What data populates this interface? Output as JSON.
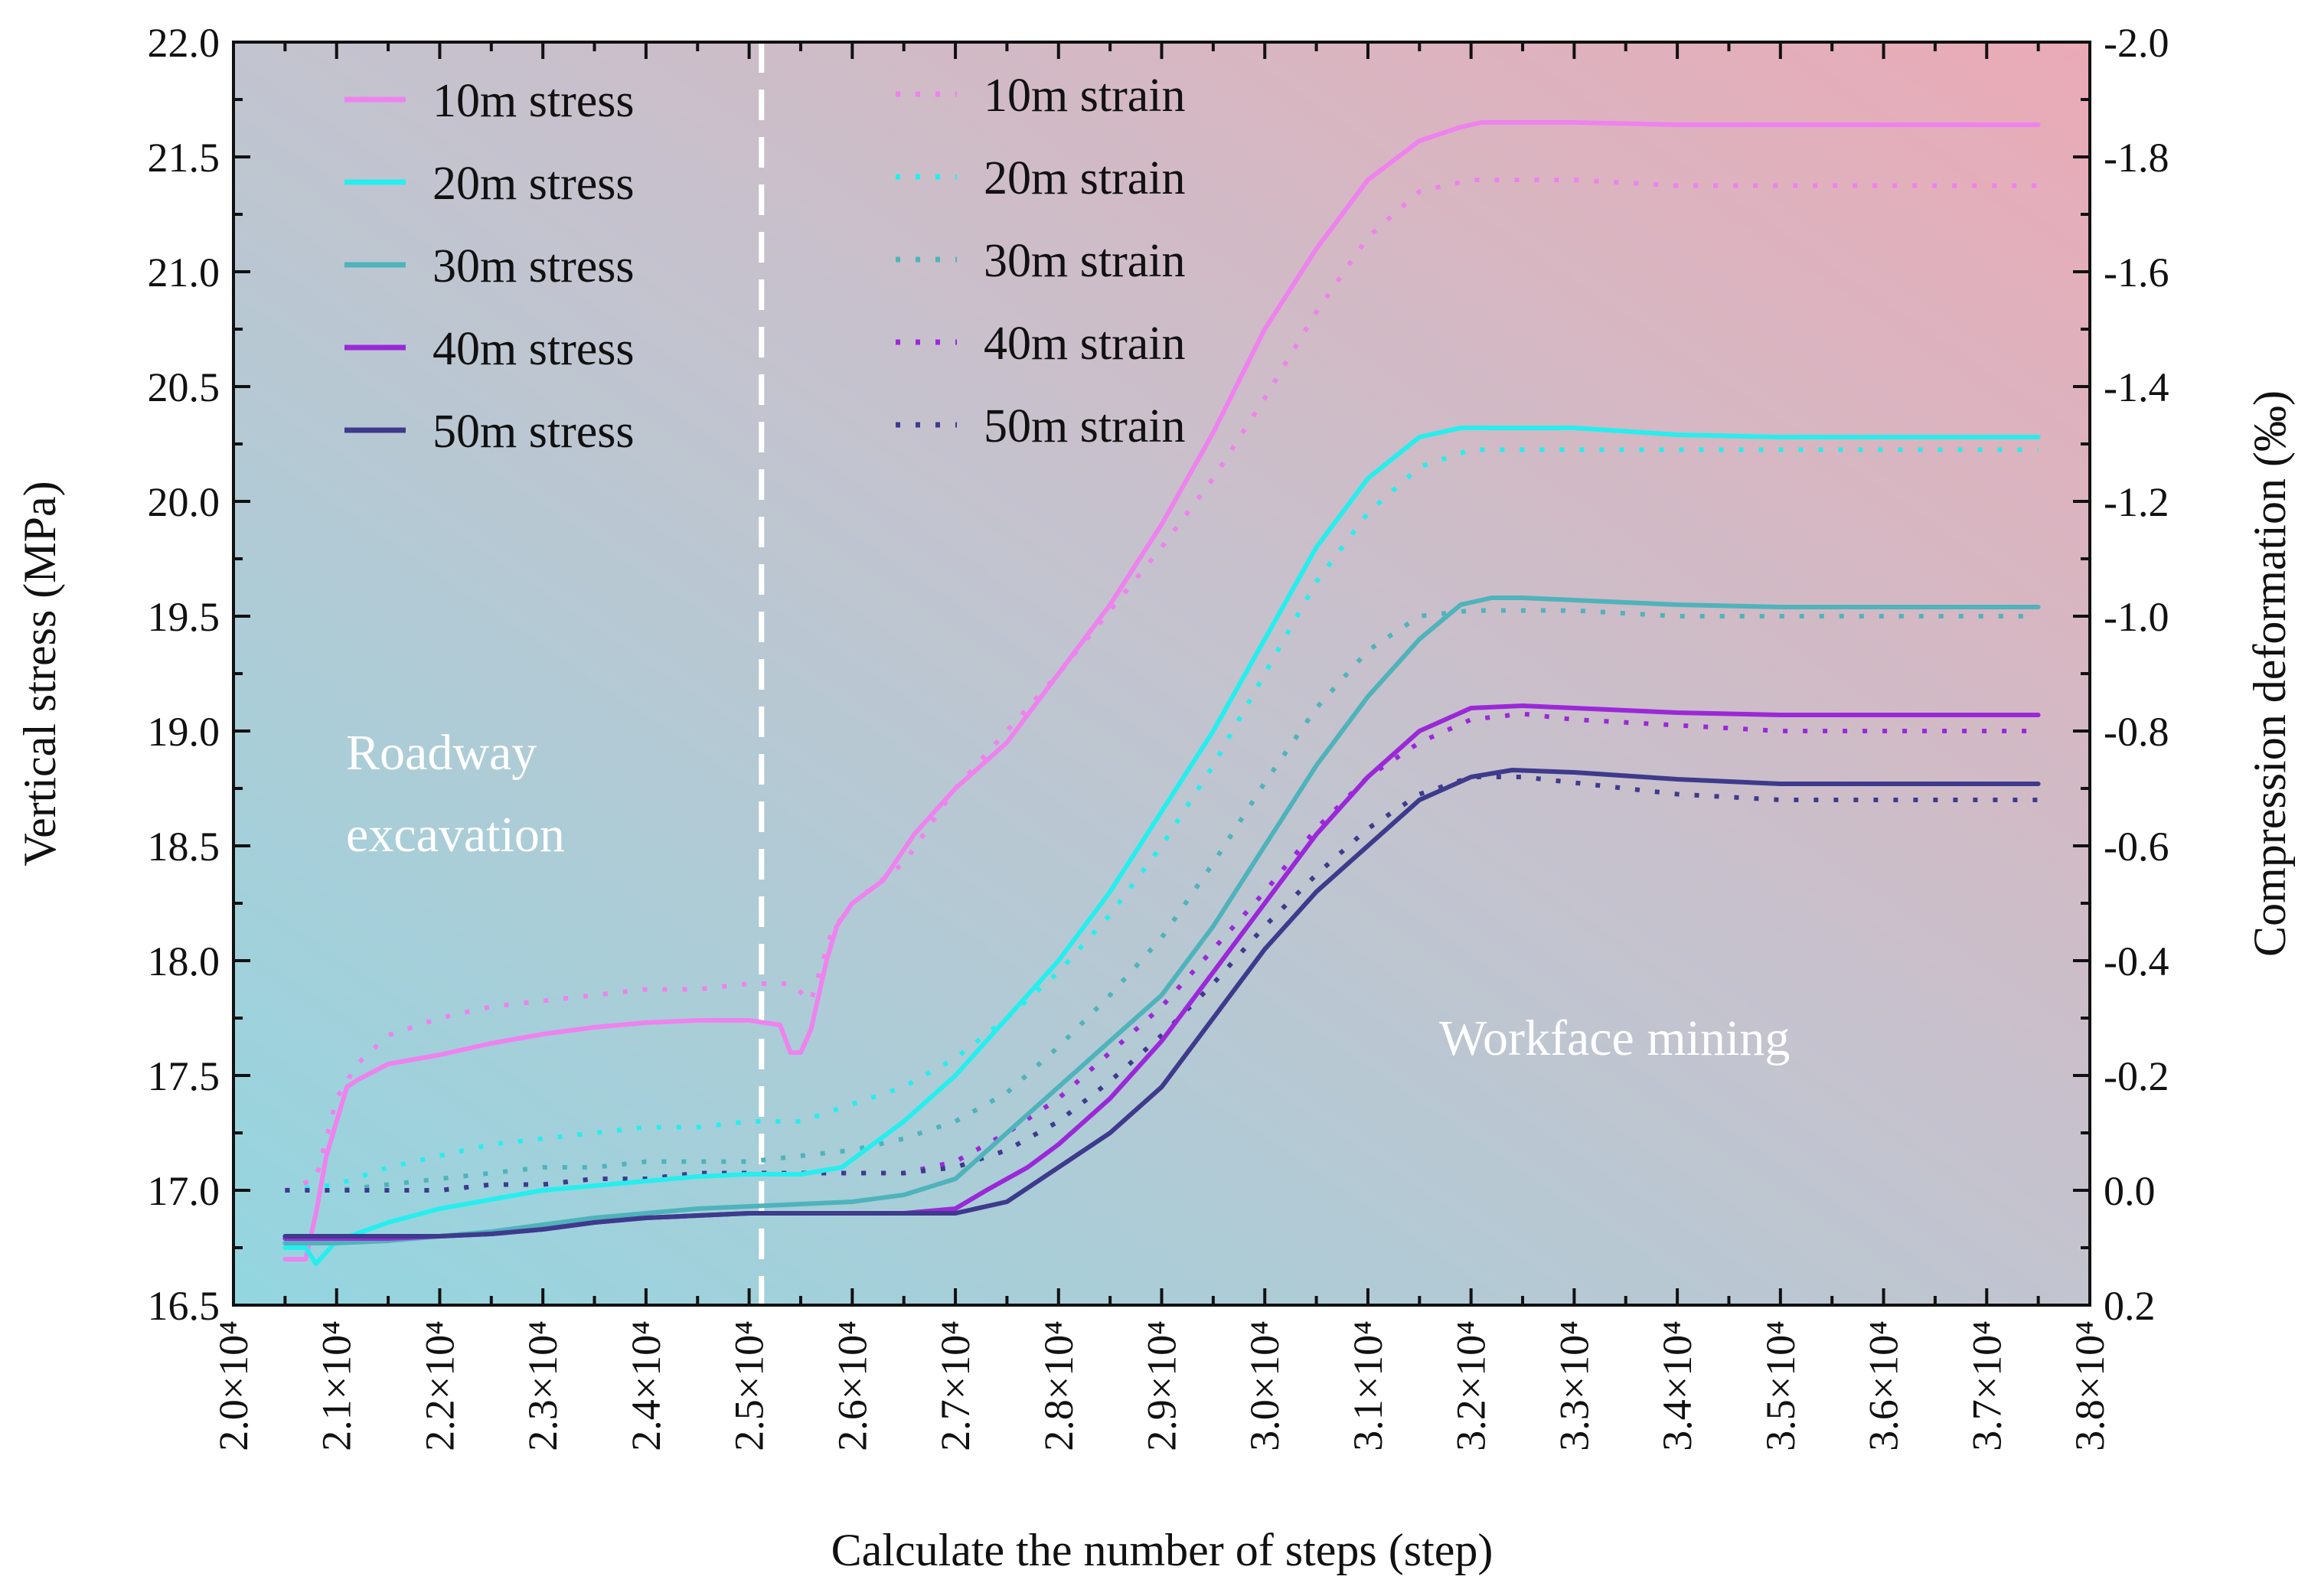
{
  "chart_data": {
    "type": "line",
    "xlabel": "Calculate the number of steps (step)",
    "ylabel_left": "Vertical stress (MPa)",
    "ylabel_right": "Compression deformation (‰)",
    "xlim": [
      20000,
      38000
    ],
    "ylim_left": [
      16.5,
      22.0
    ],
    "ylim_right": [
      0.2,
      -2.0
    ],
    "x_ticks": [
      20000,
      21000,
      22000,
      23000,
      24000,
      25000,
      26000,
      27000,
      28000,
      29000,
      30000,
      31000,
      32000,
      33000,
      34000,
      35000,
      36000,
      37000,
      38000
    ],
    "x_tick_labels": [
      "2.0×10⁴",
      "2.1×10⁴",
      "2.2×10⁴",
      "2.3×10⁴",
      "2.4×10⁴",
      "2.5×10⁴",
      "2.6×10⁴",
      "2.7×10⁴",
      "2.8×10⁴",
      "2.9×10⁴",
      "3.0×10⁴",
      "3.1×10⁴",
      "3.2×10⁴",
      "3.3×10⁴",
      "3.4×10⁴",
      "3.5×10⁴",
      "3.6×10⁴",
      "3.7×10⁴",
      "3.8×10⁴"
    ],
    "y_left_ticks": [
      16.5,
      17.0,
      17.5,
      18.0,
      18.5,
      19.0,
      19.5,
      20.0,
      20.5,
      21.0,
      21.5,
      22.0
    ],
    "y_left_tick_labels": [
      "16.5",
      "17.0",
      "17.5",
      "18.0",
      "18.5",
      "19.0",
      "19.5",
      "20.0",
      "20.5",
      "21.0",
      "21.5",
      "22.0"
    ],
    "y_right_ticks": [
      0.2,
      0.0,
      -0.2,
      -0.4,
      -0.6,
      -0.8,
      -1.0,
      -1.2,
      -1.4,
      -1.6,
      -1.8,
      -2.0
    ],
    "y_right_tick_labels": [
      "0.2",
      "0.0",
      "-0.2",
      "-0.4",
      "-0.6",
      "-0.8",
      "-1.0",
      "-1.2",
      "-1.4",
      "-1.6",
      "-1.8",
      "-2.0"
    ],
    "divider_x": 25120,
    "annotations": [
      "Roadway",
      "excavation",
      "Workface mining"
    ],
    "stress_series": [
      {
        "name": "10m stress",
        "color": "#ee82ee",
        "axis": "left",
        "x": [
          20500,
          20700,
          20800,
          20900,
          21000,
          21100,
          21200,
          21500,
          22000,
          22500,
          23000,
          23500,
          24000,
          24500,
          25000,
          25300,
          25400,
          25500,
          25600,
          25750,
          25850,
          26000,
          26300,
          26600,
          27000,
          27500,
          28000,
          28500,
          29000,
          29500,
          30000,
          30500,
          31000,
          31500,
          31900,
          32100,
          32500,
          33000,
          34000,
          35000,
          36000,
          37000,
          37500
        ],
        "y": [
          16.7,
          16.7,
          16.9,
          17.15,
          17.3,
          17.45,
          17.48,
          17.55,
          17.59,
          17.64,
          17.68,
          17.71,
          17.73,
          17.74,
          17.74,
          17.72,
          17.6,
          17.6,
          17.7,
          18.0,
          18.15,
          18.25,
          18.35,
          18.55,
          18.75,
          18.95,
          19.25,
          19.55,
          19.9,
          20.3,
          20.75,
          21.1,
          21.4,
          21.57,
          21.63,
          21.65,
          21.65,
          21.65,
          21.64,
          21.64,
          21.64,
          21.64,
          21.64
        ]
      },
      {
        "name": "20m stress",
        "color": "#26eeee",
        "axis": "left",
        "x": [
          20500,
          20700,
          20800,
          21000,
          21500,
          22000,
          22500,
          23000,
          23500,
          24000,
          24500,
          25000,
          25500,
          25900,
          26200,
          26500,
          27000,
          27500,
          28000,
          28500,
          29000,
          29500,
          30000,
          30500,
          31000,
          31500,
          31900,
          32200,
          32500,
          33000,
          34000,
          35000,
          36000,
          37000,
          37500
        ],
        "y": [
          16.75,
          16.75,
          16.68,
          16.78,
          16.86,
          16.92,
          16.96,
          17.0,
          17.02,
          17.04,
          17.06,
          17.07,
          17.07,
          17.1,
          17.2,
          17.3,
          17.5,
          17.75,
          18.0,
          18.3,
          18.65,
          19.0,
          19.4,
          19.8,
          20.1,
          20.28,
          20.32,
          20.32,
          20.32,
          20.32,
          20.29,
          20.28,
          20.28,
          20.28,
          20.28
        ]
      },
      {
        "name": "30m stress",
        "color": "#4fb3bb",
        "axis": "left",
        "x": [
          20500,
          21000,
          21500,
          22000,
          22500,
          23000,
          23500,
          24000,
          24500,
          25000,
          25500,
          26000,
          26500,
          27000,
          27500,
          28000,
          28500,
          29000,
          29500,
          30000,
          30500,
          31000,
          31500,
          31900,
          32200,
          32500,
          33000,
          34000,
          35000,
          36000,
          37000,
          37500
        ],
        "y": [
          16.77,
          16.77,
          16.78,
          16.8,
          16.82,
          16.85,
          16.88,
          16.9,
          16.92,
          16.93,
          16.94,
          16.95,
          16.98,
          17.05,
          17.25,
          17.45,
          17.65,
          17.85,
          18.15,
          18.5,
          18.85,
          19.15,
          19.4,
          19.55,
          19.58,
          19.58,
          19.57,
          19.55,
          19.54,
          19.54,
          19.54,
          19.54
        ]
      },
      {
        "name": "40m stress",
        "color": "#9b28d8",
        "axis": "left",
        "x": [
          20500,
          21000,
          21500,
          22000,
          22500,
          23000,
          23500,
          24000,
          24500,
          25000,
          25500,
          26000,
          26500,
          27000,
          27300,
          27700,
          28000,
          28500,
          29000,
          29500,
          30000,
          30500,
          31000,
          31500,
          32000,
          32500,
          33000,
          34000,
          35000,
          36000,
          37000,
          37500
        ],
        "y": [
          16.79,
          16.79,
          16.79,
          16.8,
          16.81,
          16.83,
          16.86,
          16.88,
          16.89,
          16.9,
          16.9,
          16.9,
          16.9,
          16.92,
          17.0,
          17.1,
          17.2,
          17.4,
          17.65,
          17.95,
          18.25,
          18.55,
          18.8,
          19.0,
          19.1,
          19.11,
          19.1,
          19.08,
          19.07,
          19.07,
          19.07,
          19.07
        ]
      },
      {
        "name": "50m stress",
        "color": "#3e3a8c",
        "axis": "left",
        "x": [
          20500,
          21000,
          21500,
          22000,
          22500,
          23000,
          23500,
          24000,
          24500,
          25000,
          25500,
          26000,
          26500,
          27000,
          27500,
          28000,
          28500,
          29000,
          29500,
          30000,
          30500,
          31000,
          31500,
          32000,
          32400,
          33000,
          34000,
          35000,
          36000,
          37000,
          37500
        ],
        "y": [
          16.8,
          16.8,
          16.8,
          16.8,
          16.81,
          16.83,
          16.86,
          16.88,
          16.89,
          16.9,
          16.9,
          16.9,
          16.9,
          16.9,
          16.95,
          17.1,
          17.25,
          17.45,
          17.75,
          18.05,
          18.3,
          18.5,
          18.7,
          18.8,
          18.83,
          18.82,
          18.79,
          18.77,
          18.77,
          18.77,
          18.77
        ]
      }
    ],
    "strain_series": [
      {
        "name": "10m strain",
        "color": "#ee82ee",
        "axis": "right",
        "x": [
          20500,
          20800,
          21000,
          21200,
          21500,
          22000,
          22500,
          23000,
          23500,
          24000,
          24500,
          25000,
          25400,
          25600,
          25800,
          26000,
          26500,
          27000,
          27500,
          28000,
          28500,
          29000,
          29500,
          30000,
          30500,
          31000,
          31500,
          32000,
          32500,
          33000,
          34000,
          35000,
          36000,
          37000,
          37500
        ],
        "y": [
          0.0,
          -0.02,
          -0.16,
          -0.22,
          -0.27,
          -0.3,
          -0.32,
          -0.33,
          -0.34,
          -0.35,
          -0.35,
          -0.36,
          -0.36,
          -0.33,
          -0.45,
          -0.5,
          -0.57,
          -0.7,
          -0.8,
          -0.9,
          -1.01,
          -1.12,
          -1.24,
          -1.38,
          -1.53,
          -1.66,
          -1.74,
          -1.76,
          -1.76,
          -1.76,
          -1.75,
          -1.75,
          -1.75,
          -1.75,
          -1.75
        ]
      },
      {
        "name": "20m strain",
        "color": "#26eeee",
        "axis": "right",
        "x": [
          20500,
          21000,
          21500,
          22000,
          22500,
          23000,
          23500,
          24000,
          24500,
          25000,
          25500,
          26000,
          26500,
          27000,
          27500,
          28000,
          28500,
          29000,
          29500,
          30000,
          30500,
          31000,
          31500,
          32000,
          32500,
          33000,
          34000,
          35000,
          36000,
          37000,
          37500
        ],
        "y": [
          0.0,
          -0.01,
          -0.04,
          -0.06,
          -0.08,
          -0.09,
          -0.1,
          -0.11,
          -0.11,
          -0.12,
          -0.12,
          -0.15,
          -0.18,
          -0.23,
          -0.3,
          -0.38,
          -0.48,
          -0.6,
          -0.74,
          -0.9,
          -1.06,
          -1.18,
          -1.26,
          -1.29,
          -1.29,
          -1.29,
          -1.29,
          -1.29,
          -1.29,
          -1.29,
          -1.29
        ]
      },
      {
        "name": "30m strain",
        "color": "#4fb3bb",
        "axis": "right",
        "x": [
          20500,
          21000,
          21500,
          22000,
          22500,
          23000,
          23500,
          24000,
          24500,
          25000,
          25500,
          26000,
          26500,
          27000,
          27500,
          28000,
          28500,
          29000,
          29500,
          30000,
          30500,
          31000,
          31500,
          32000,
          32500,
          33000,
          34000,
          35000,
          36000,
          37000,
          37500
        ],
        "y": [
          0.0,
          0.0,
          -0.01,
          -0.02,
          -0.03,
          -0.04,
          -0.04,
          -0.05,
          -0.05,
          -0.05,
          -0.06,
          -0.07,
          -0.09,
          -0.12,
          -0.17,
          -0.25,
          -0.34,
          -0.44,
          -0.57,
          -0.71,
          -0.84,
          -0.94,
          -1.0,
          -1.01,
          -1.01,
          -1.01,
          -1.0,
          -1.0,
          -1.0,
          -1.0,
          -1.0
        ]
      },
      {
        "name": "40m strain",
        "color": "#9b28d8",
        "axis": "right",
        "x": [
          20500,
          21000,
          21500,
          22000,
          22500,
          23000,
          23500,
          24000,
          24500,
          25000,
          25500,
          26000,
          26500,
          27000,
          27500,
          28000,
          28500,
          29000,
          29500,
          30000,
          30500,
          31000,
          31500,
          32000,
          32500,
          33000,
          34000,
          35000,
          36000,
          37000,
          37500
        ],
        "y": [
          0.0,
          0.0,
          0.0,
          0.0,
          -0.01,
          -0.01,
          -0.02,
          -0.02,
          -0.03,
          -0.03,
          -0.03,
          -0.03,
          -0.03,
          -0.05,
          -0.1,
          -0.16,
          -0.24,
          -0.32,
          -0.42,
          -0.52,
          -0.63,
          -0.72,
          -0.78,
          -0.82,
          -0.83,
          -0.82,
          -0.81,
          -0.8,
          -0.8,
          -0.8,
          -0.8
        ]
      },
      {
        "name": "50m strain",
        "color": "#3e3a8c",
        "axis": "right",
        "x": [
          20500,
          21000,
          21500,
          22000,
          22500,
          23000,
          23500,
          24000,
          24500,
          25000,
          25500,
          26000,
          26500,
          27000,
          27500,
          28000,
          28500,
          29000,
          29500,
          30000,
          30500,
          31000,
          31500,
          32000,
          32500,
          33000,
          34000,
          35000,
          36000,
          37000,
          37500
        ],
        "y": [
          0.0,
          0.0,
          0.0,
          0.0,
          -0.01,
          -0.01,
          -0.02,
          -0.02,
          -0.03,
          -0.03,
          -0.03,
          -0.03,
          -0.03,
          -0.04,
          -0.07,
          -0.12,
          -0.19,
          -0.27,
          -0.36,
          -0.46,
          -0.55,
          -0.63,
          -0.69,
          -0.72,
          -0.72,
          -0.71,
          -0.69,
          -0.68,
          -0.68,
          -0.68,
          -0.68
        ]
      }
    ]
  }
}
